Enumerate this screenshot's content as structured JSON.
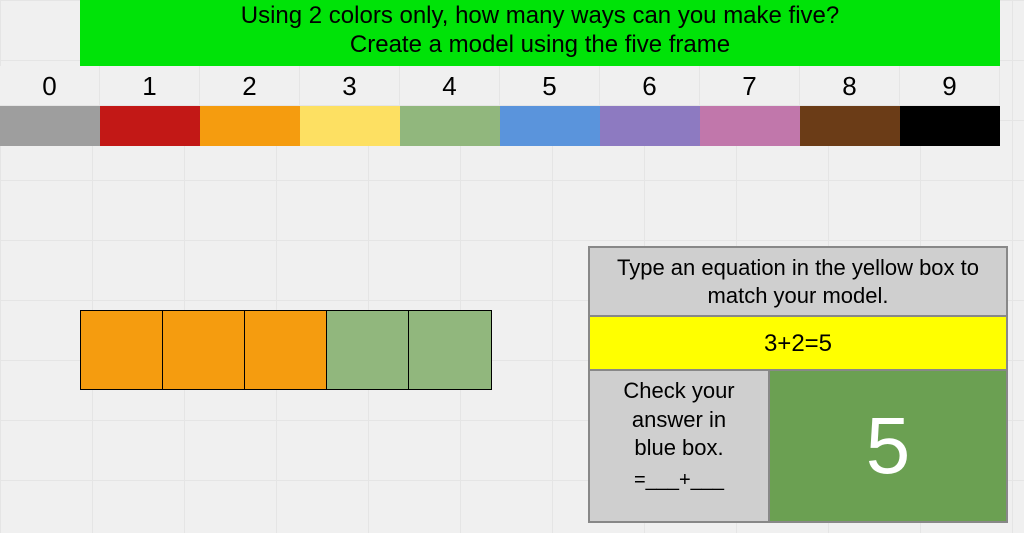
{
  "title": {
    "line1": "Using 2 colors only, how many ways can you make five?",
    "line2": "Create a model using the five frame",
    "bg": "#00e308"
  },
  "numbers": [
    "0",
    "1",
    "2",
    "3",
    "4",
    "5",
    "6",
    "7",
    "8",
    "9"
  ],
  "swatches": [
    "#9e9e9e",
    "#c21816",
    "#f59c0f",
    "#fde062",
    "#91b77d",
    "#5a94dc",
    "#8d7ac1",
    "#c177ab",
    "#6b3c17",
    "#000000"
  ],
  "five_frame": {
    "cells": [
      "#f59c0f",
      "#f59c0f",
      "#f59c0f",
      "#91b77d",
      "#91b77d"
    ]
  },
  "panel": {
    "instruction": "Type an equation in the yellow box to match your model.",
    "equation_value": "3+2=5",
    "check_text_l1": "Check your",
    "check_text_l2": "answer in",
    "check_text_l3": "blue box.",
    "check_eq": "=___+___",
    "result_value": "5",
    "result_bg": "#6ba052",
    "yellow_bg": "#ffff00",
    "instr_bg": "#cfcfcf"
  }
}
